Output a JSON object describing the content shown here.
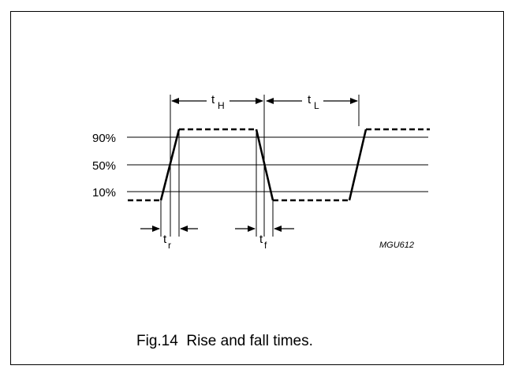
{
  "levels": {
    "p90": "90%",
    "p50": "50%",
    "p10": "10%"
  },
  "intervals": {
    "high": {
      "t": "t",
      "sub": "H"
    },
    "low": {
      "t": "t",
      "sub": "L"
    },
    "rise": {
      "t": "t",
      "sub": "r"
    },
    "fall": {
      "t": "t",
      "sub": "f"
    }
  },
  "code": "MGU612",
  "caption": "Fig.14  Rise and fall times."
}
